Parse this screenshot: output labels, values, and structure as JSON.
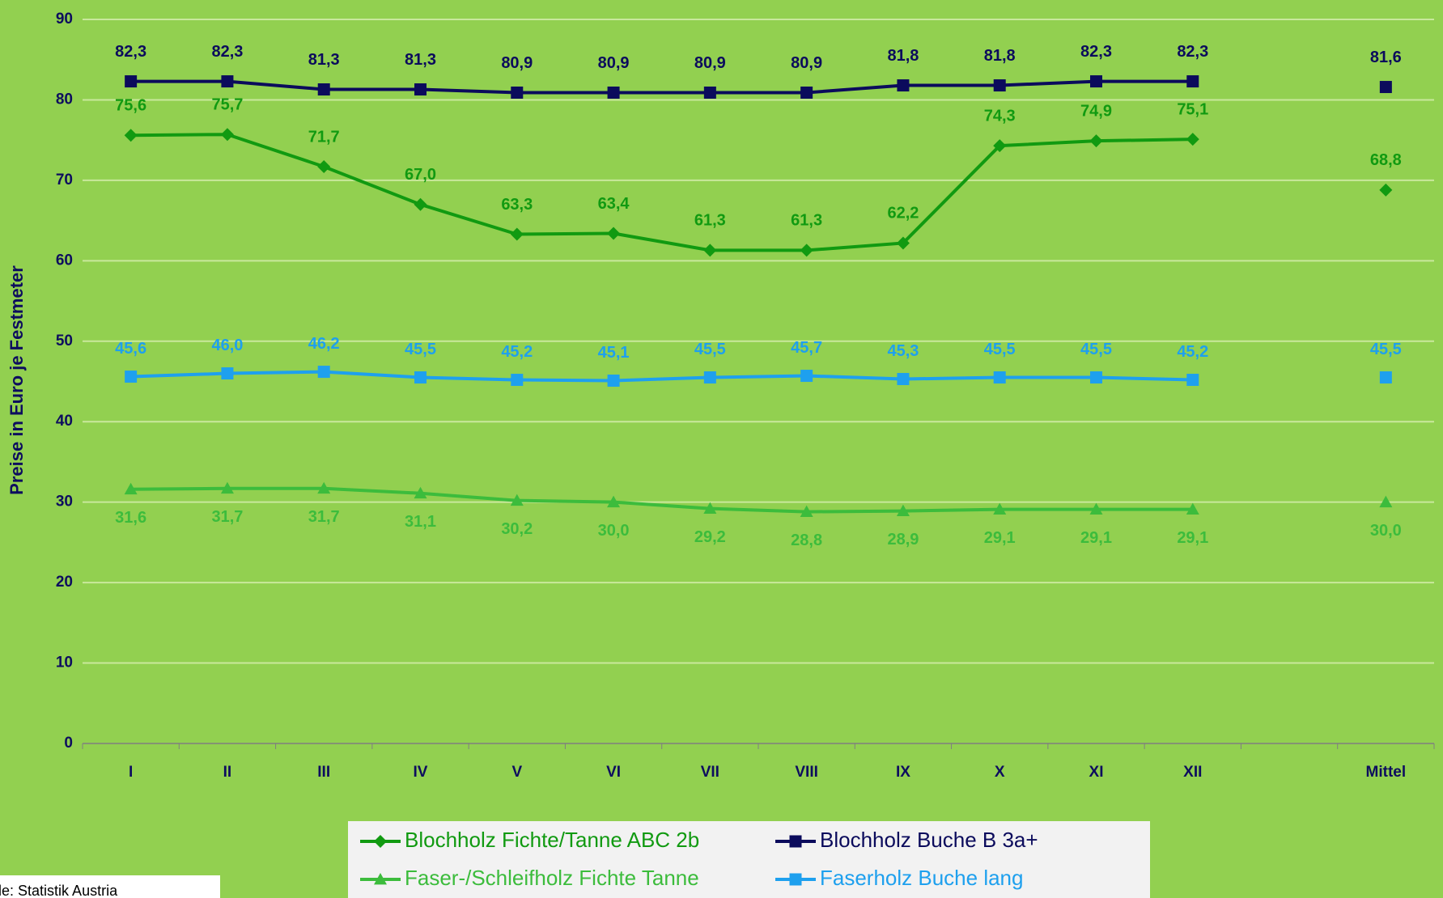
{
  "chart_data": {
    "type": "line",
    "ylabel": "Preise in Euro je Festmeter",
    "source": "Quelle: Statistik Austria",
    "categories": [
      "I",
      "II",
      "III",
      "IV",
      "V",
      "VI",
      "VII",
      "VIII",
      "IX",
      "X",
      "XI",
      "XII",
      null,
      "Mittel"
    ],
    "ylim": [
      0,
      90
    ],
    "yticks": [
      0,
      10,
      20,
      30,
      40,
      50,
      60,
      70,
      80,
      90
    ],
    "grid": true,
    "series": [
      {
        "name": "Blochholz Fichte/Tanne ABC 2b",
        "color": "#119a11",
        "marker": "diamond",
        "values": [
          75.6,
          75.7,
          71.7,
          67.0,
          63.3,
          63.4,
          61.3,
          61.3,
          62.2,
          74.3,
          74.9,
          75.1,
          null,
          68.8
        ],
        "value_labels": [
          "75,6",
          "75,7",
          "71,7",
          "67,0",
          "63,3",
          "63,4",
          "61,3",
          "61,3",
          "62,2",
          "74,3",
          "74,9",
          "75,1",
          null,
          "68,8"
        ]
      },
      {
        "name": "Blochholz Buche B 3a+",
        "color": "#0b0b5c",
        "marker": "square",
        "values": [
          82.3,
          82.3,
          81.3,
          81.3,
          80.9,
          80.9,
          80.9,
          80.9,
          81.8,
          81.8,
          82.3,
          82.3,
          null,
          81.6
        ],
        "value_labels": [
          "82,3",
          "82,3",
          "81,3",
          "81,3",
          "80,9",
          "80,9",
          "80,9",
          "80,9",
          "81,8",
          "81,8",
          "82,3",
          "82,3",
          null,
          "81,6"
        ]
      },
      {
        "name": "Faser-/Schleifholz Fichte Tanne",
        "color": "#3cbc3c",
        "marker": "triangle",
        "values": [
          31.6,
          31.7,
          31.7,
          31.1,
          30.2,
          30.0,
          29.2,
          28.8,
          28.9,
          29.1,
          29.1,
          29.1,
          null,
          30.0
        ],
        "value_labels": [
          "31,6",
          "31,7",
          "31,7",
          "31,1",
          "30,2",
          "30,0",
          "29,2",
          "28,8",
          "28,9",
          "29,1",
          "29,1",
          "29,1",
          null,
          "30,0"
        ]
      },
      {
        "name": "Faserholz Buche lang",
        "color": "#1ea0ee",
        "marker": "square",
        "values": [
          45.6,
          46.0,
          46.2,
          45.5,
          45.2,
          45.1,
          45.5,
          45.7,
          45.3,
          45.5,
          45.5,
          45.2,
          null,
          45.5
        ],
        "value_labels": [
          "45,6",
          "46,0",
          "46,2",
          "45,5",
          "45,2",
          "45,1",
          "45,5",
          "45,7",
          "45,3",
          "45,5",
          "45,5",
          "45,2",
          null,
          "45,5"
        ]
      }
    ]
  }
}
